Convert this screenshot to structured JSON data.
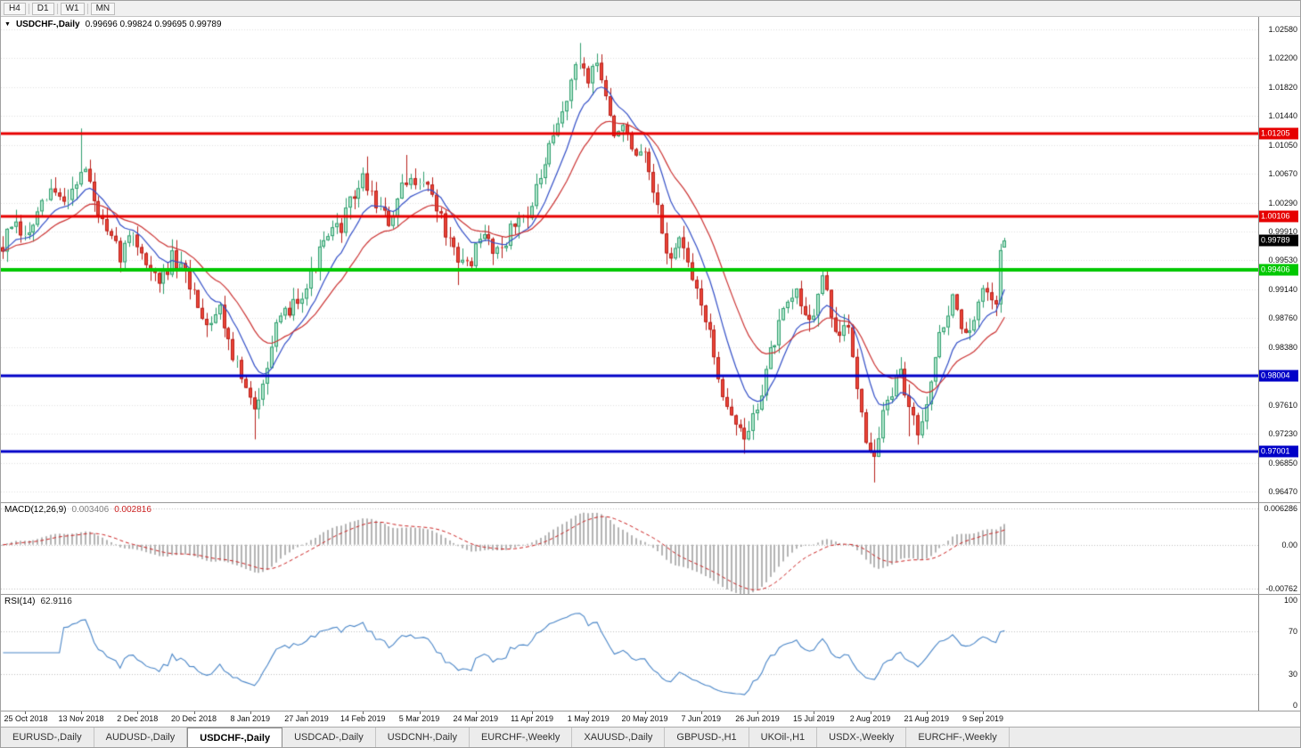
{
  "toolbar": {
    "timeframes": [
      "H4",
      "D1",
      "W1",
      "MN"
    ]
  },
  "chart": {
    "dropdown_icon": "▼",
    "title": "USDCHF-,Daily",
    "ohlc_text": "0.99696 0.99824 0.99695 0.99789"
  },
  "price_axis": {
    "ticks": [
      "1.02580",
      "1.02200",
      "1.01820",
      "1.01440",
      "1.01050",
      "1.00670",
      "1.00290",
      "0.99910",
      "0.99530",
      "0.99140",
      "0.98760",
      "0.98380",
      "0.98000",
      "0.97610",
      "0.97230",
      "0.96850",
      "0.96470"
    ]
  },
  "levels": [
    {
      "value": 1.01205,
      "label": "1.01205",
      "color": "#e60000",
      "width": 3
    },
    {
      "value": 1.00106,
      "label": "1.00106",
      "color": "#e60000",
      "width": 3
    },
    {
      "value": 0.99406,
      "label": "0.99406",
      "color": "#00c800",
      "width": 4
    },
    {
      "value": 0.98004,
      "label": "0.98004",
      "color": "#0000c8",
      "width": 3
    },
    {
      "value": 0.97001,
      "label": "0.97001",
      "color": "#0000c8",
      "width": 3
    }
  ],
  "current_price": {
    "label": "0.99789",
    "color": "#000000"
  },
  "macd": {
    "name": "MACD(12,26,9)",
    "value_main": "0.003406",
    "value_signal": "0.002816",
    "axis": [
      "0.006286",
      "0.00",
      "-0.00762"
    ]
  },
  "rsi": {
    "name": "RSI(14)",
    "value": "62.9116",
    "axis": [
      "100",
      "70",
      "30",
      "0"
    ]
  },
  "date_axis": [
    "25 Oct 2018",
    "13 Nov 2018",
    "2 Dec 2018",
    "20 Dec 2018",
    "8 Jan 2019",
    "27 Jan 2019",
    "14 Feb 2019",
    "5 Mar 2019",
    "24 Mar 2019",
    "11 Apr 2019",
    "1 May 2019",
    "20 May 2019",
    "7 Jun 2019",
    "26 Jun 2019",
    "15 Jul 2019",
    "2 Aug 2019",
    "21 Aug 2019",
    "9 Sep 2019"
  ],
  "tabs": [
    {
      "label": "EURUSD-,Daily",
      "active": false
    },
    {
      "label": "AUDUSD-,Daily",
      "active": false
    },
    {
      "label": "USDCHF-,Daily",
      "active": true
    },
    {
      "label": "USDCAD-,Daily",
      "active": false
    },
    {
      "label": "USDCNH-,Daily",
      "active": false
    },
    {
      "label": "EURCHF-,Weekly",
      "active": false
    },
    {
      "label": "XAUUSD-,Daily",
      "active": false
    },
    {
      "label": "GBPUSD-,H1",
      "active": false
    },
    {
      "label": "UKOil-,H1",
      "active": false
    },
    {
      "label": "USDX-,Weekly",
      "active": false
    },
    {
      "label": "EURCHF-,Weekly",
      "active": false
    }
  ],
  "chart_data": {
    "type": "candlestick",
    "symbol": "USDCHF",
    "timeframe": "Daily",
    "last_bar": {
      "open": 0.99696,
      "high": 0.99824,
      "low": 0.99695,
      "close": 0.99789
    },
    "y_range": [
      0.9647,
      1.0258
    ],
    "num_bars": 232,
    "total_slots": 290,
    "first_label_bar": 5,
    "label_step": 13,
    "ma_fast_period": 10,
    "ma_slow_period": 22,
    "macd": {
      "fast": 12,
      "slow": 26,
      "signal": 9,
      "range": [
        -0.00762,
        0.006286
      ]
    },
    "rsi": {
      "period": 14,
      "levels": [
        70,
        30
      ]
    },
    "anchors": [
      [
        0,
        0.997
      ],
      [
        2,
        1.0
      ],
      [
        5,
        0.998
      ],
      [
        8,
        1.001
      ],
      [
        11,
        1.0045
      ],
      [
        14,
        1.003
      ],
      [
        17,
        1.006
      ],
      [
        19,
        1.0075
      ],
      [
        21,
        1.003
      ],
      [
        24,
        0.9985
      ],
      [
        27,
        0.996
      ],
      [
        30,
        0.999
      ],
      [
        33,
        0.995
      ],
      [
        36,
        0.992
      ],
      [
        39,
        0.9955
      ],
      [
        42,
        0.993
      ],
      [
        44,
        0.991
      ],
      [
        47,
        0.987
      ],
      [
        50,
        0.989
      ],
      [
        53,
        0.983
      ],
      [
        56,
        0.978
      ],
      [
        58,
        0.975
      ],
      [
        60,
        0.98
      ],
      [
        63,
        0.986
      ],
      [
        66,
        0.989
      ],
      [
        70,
        0.992
      ],
      [
        74,
        0.9975
      ],
      [
        78,
        1.0
      ],
      [
        81,
        1.004
      ],
      [
        83,
        1.006
      ],
      [
        86,
        1.003
      ],
      [
        89,
        1.0
      ],
      [
        92,
        1.0045
      ],
      [
        96,
        1.0065
      ],
      [
        99,
        1.004
      ],
      [
        102,
        0.999
      ],
      [
        105,
        0.9945
      ],
      [
        108,
        0.9955
      ],
      [
        111,
        0.9985
      ],
      [
        114,
        0.9965
      ],
      [
        118,
        1.0
      ],
      [
        122,
        1.0025
      ],
      [
        125,
        1.008
      ],
      [
        128,
        1.013
      ],
      [
        131,
        1.019
      ],
      [
        133,
        1.0215
      ],
      [
        135,
        1.0195
      ],
      [
        137,
        1.0215
      ],
      [
        139,
        1.017
      ],
      [
        141,
        1.011
      ],
      [
        143,
        1.014
      ],
      [
        145,
        1.009
      ],
      [
        148,
        1.0085
      ],
      [
        150,
        1.004
      ],
      [
        152,
        0.999
      ],
      [
        154,
        0.995
      ],
      [
        156,
        0.9985
      ],
      [
        158,
        0.994
      ],
      [
        161,
        0.99
      ],
      [
        163,
        0.985
      ],
      [
        166,
        0.978
      ],
      [
        169,
        0.9735
      ],
      [
        171,
        0.9715
      ],
      [
        174,
        0.976
      ],
      [
        177,
        0.983
      ],
      [
        180,
        0.988
      ],
      [
        183,
        0.991
      ],
      [
        185,
        0.988
      ],
      [
        187,
        0.9885
      ],
      [
        189,
        0.993
      ],
      [
        191,
        0.988
      ],
      [
        193,
        0.985
      ],
      [
        195,
        0.9865
      ],
      [
        197,
        0.979
      ],
      [
        199,
        0.972
      ],
      [
        201,
        0.969
      ],
      [
        203,
        0.975
      ],
      [
        205,
        0.978
      ],
      [
        207,
        0.98
      ],
      [
        209,
        0.976
      ],
      [
        211,
        0.973
      ],
      [
        213,
        0.977
      ],
      [
        215,
        0.983
      ],
      [
        217,
        0.987
      ],
      [
        219,
        0.99
      ],
      [
        221,
        0.987
      ],
      [
        223,
        0.985
      ],
      [
        225,
        0.9895
      ],
      [
        227,
        0.9915
      ],
      [
        229,
        0.9905
      ],
      [
        230,
        0.9965
      ],
      [
        231,
        0.99789
      ]
    ],
    "spikes": [
      [
        18,
        "high",
        1.0127
      ],
      [
        58,
        "low",
        0.9716
      ],
      [
        84,
        "high",
        1.009
      ],
      [
        93,
        "high",
        1.0092
      ],
      [
        105,
        "low",
        0.992
      ],
      [
        133,
        "high",
        1.024
      ],
      [
        137,
        "high",
        1.0226
      ],
      [
        171,
        "low",
        0.9697
      ],
      [
        201,
        "low",
        0.9659
      ],
      [
        209,
        "low",
        0.972
      ]
    ],
    "colors": {
      "up_fill": "#b5e8cf",
      "up_stroke": "#2f9e6e",
      "down_fill": "#ec4438",
      "down_stroke": "#b7201a",
      "ma_fast": "#3450c8",
      "ma_slow": "#cc3333",
      "macd_hist": "#b4b4b4",
      "macd_signal": "#cc2222",
      "rsi_line": "#4a86c8",
      "grid": "#e0e0e0",
      "level_dotted": "#c0c0c0"
    }
  }
}
